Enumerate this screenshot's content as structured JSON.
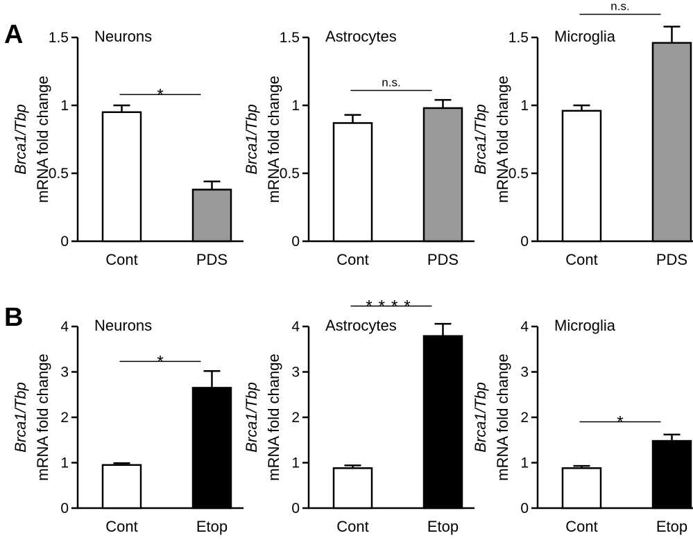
{
  "panels": [
    {
      "letter": "A"
    },
    {
      "letter": "B"
    }
  ],
  "ylabel": {
    "gene": "Brca1/Tbp",
    "measure": "mRNA fold change"
  },
  "colors": {
    "control": "#ffffff",
    "pds": "#999999",
    "etop": "#000000",
    "stroke": "#000000"
  },
  "chart_data": [
    {
      "type": "bar",
      "panel": "A",
      "title": "Neurons",
      "categories": [
        "Cont",
        "PDS"
      ],
      "values": [
        0.95,
        0.38
      ],
      "errors": [
        0.05,
        0.06
      ],
      "fills": [
        "#ffffff",
        "#999999"
      ],
      "ylim": [
        0,
        1.5
      ],
      "yticks": [
        0,
        0.5,
        1,
        1.5
      ],
      "ytick_labels": [
        "0",
        "0.5",
        "1",
        "1.5"
      ],
      "significance": "*",
      "ylabel": "Brca1/Tbp mRNA fold change"
    },
    {
      "type": "bar",
      "panel": "A",
      "title": "Astrocytes",
      "categories": [
        "Cont",
        "PDS"
      ],
      "values": [
        0.87,
        0.98
      ],
      "errors": [
        0.06,
        0.06
      ],
      "fills": [
        "#ffffff",
        "#999999"
      ],
      "ylim": [
        0,
        1.5
      ],
      "yticks": [
        0,
        0.5,
        1,
        1.5
      ],
      "ytick_labels": [
        "0",
        "0.5",
        "1",
        "1.5"
      ],
      "significance": "n.s.",
      "ylabel": "Brca1/Tbp mRNA fold change"
    },
    {
      "type": "bar",
      "panel": "A",
      "title": "Microglia",
      "categories": [
        "Cont",
        "PDS"
      ],
      "values": [
        0.96,
        1.46
      ],
      "errors": [
        0.04,
        0.12
      ],
      "fills": [
        "#ffffff",
        "#999999"
      ],
      "ylim": [
        0,
        1.5
      ],
      "yticks": [
        0,
        0.5,
        1,
        1.5
      ],
      "ytick_labels": [
        "0",
        "0.5",
        "1",
        "1.5"
      ],
      "significance": "n.s.",
      "ylabel": "Brca1/Tbp mRNA fold change"
    },
    {
      "type": "bar",
      "panel": "B",
      "title": "Neurons",
      "categories": [
        "Cont",
        "Etop"
      ],
      "values": [
        0.95,
        2.65
      ],
      "errors": [
        0.04,
        0.37
      ],
      "fills": [
        "#ffffff",
        "#000000"
      ],
      "ylim": [
        0,
        4
      ],
      "yticks": [
        0,
        1,
        2,
        3,
        4
      ],
      "ytick_labels": [
        "0",
        "1",
        "2",
        "3",
        "4"
      ],
      "significance": "*",
      "ylabel": "Brca1/Tbp mRNA fold change"
    },
    {
      "type": "bar",
      "panel": "B",
      "title": "Astrocytes",
      "categories": [
        "Cont",
        "Etop"
      ],
      "values": [
        0.88,
        3.79
      ],
      "errors": [
        0.06,
        0.27
      ],
      "fills": [
        "#ffffff",
        "#000000"
      ],
      "ylim": [
        0,
        4
      ],
      "yticks": [
        0,
        1,
        2,
        3,
        4
      ],
      "ytick_labels": [
        "0",
        "1",
        "2",
        "3",
        "4"
      ],
      "significance": "****",
      "ylabel": "Brca1/Tbp mRNA fold change"
    },
    {
      "type": "bar",
      "panel": "B",
      "title": "Microglia",
      "categories": [
        "Cont",
        "Etop"
      ],
      "values": [
        0.88,
        1.48
      ],
      "errors": [
        0.05,
        0.14
      ],
      "fills": [
        "#ffffff",
        "#000000"
      ],
      "ylim": [
        0,
        4
      ],
      "yticks": [
        0,
        1,
        2,
        3,
        4
      ],
      "ytick_labels": [
        "0",
        "1",
        "2",
        "3",
        "4"
      ],
      "significance": "*",
      "ylabel": "Brca1/Tbp mRNA fold change"
    }
  ]
}
